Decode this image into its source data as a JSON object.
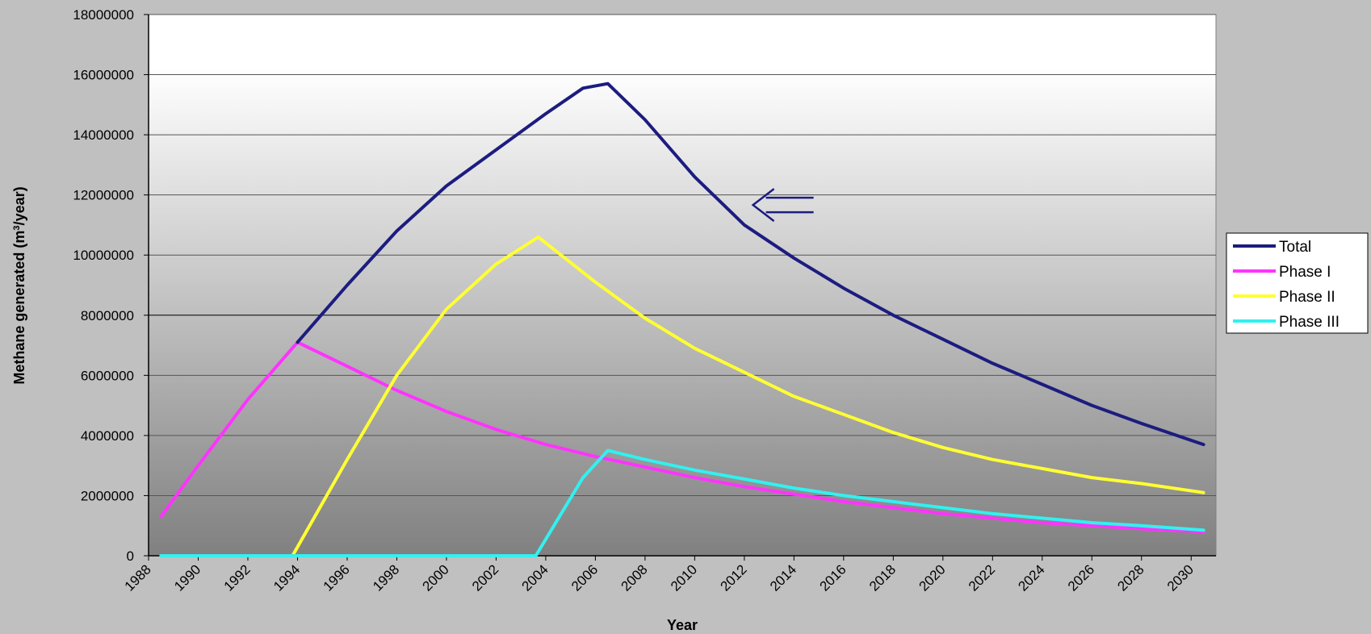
{
  "chart_data": {
    "type": "line",
    "title": "",
    "xlabel": "Year",
    "ylabel": "Methane generated (m³/year)",
    "ylabel_parts": {
      "before": "Methane generated (m",
      "sup": "3",
      "after": "/year)"
    },
    "xlim": [
      1988,
      2031
    ],
    "ylim": [
      0,
      18000000
    ],
    "y_ticks": [
      "0",
      "2000000",
      "4000000",
      "6000000",
      "8000000",
      "10000000",
      "12000000",
      "14000000",
      "16000000",
      "18000000"
    ],
    "x_ticks": [
      "1988",
      "1990",
      "1992",
      "1994",
      "1996",
      "1998",
      "2000",
      "2002",
      "2004",
      "2006",
      "2008",
      "2010",
      "2012",
      "2014",
      "2016",
      "2018",
      "2020",
      "2022",
      "2024",
      "2026",
      "2028",
      "2030"
    ],
    "grid": true,
    "legend_position": "right",
    "annotation": {
      "type": "double-arrow-left",
      "x": 2013,
      "y": 11800000,
      "color": "#1c1c80"
    },
    "series": [
      {
        "name": "Total",
        "color": "#1c1c80",
        "x": [
          1994,
          1996,
          1998,
          2000,
          2002,
          2004,
          2005.5,
          2006.5,
          2008,
          2010,
          2012,
          2014,
          2016,
          2018,
          2020,
          2022,
          2024,
          2026,
          2028,
          2030.5
        ],
        "y": [
          7100000,
          9000000,
          10800000,
          12300000,
          13500000,
          14700000,
          15550000,
          15700000,
          14500000,
          12600000,
          11000000,
          9900000,
          8900000,
          8000000,
          7200000,
          6400000,
          5700000,
          5000000,
          4400000,
          3700000
        ]
      },
      {
        "name": "Phase I",
        "color": "#ff33ff",
        "x": [
          1988.5,
          1990,
          1992,
          1994,
          1996,
          1998,
          2000,
          2002,
          2004,
          2006,
          2008,
          2010,
          2012,
          2014,
          2016,
          2018,
          2020,
          2022,
          2024,
          2026,
          2028,
          2030.5
        ],
        "y": [
          1300000,
          3000000,
          5200000,
          7100000,
          6300000,
          5500000,
          4800000,
          4200000,
          3700000,
          3300000,
          2950000,
          2600000,
          2300000,
          2050000,
          1800000,
          1600000,
          1400000,
          1250000,
          1100000,
          1000000,
          900000,
          800000
        ]
      },
      {
        "name": "Phase II",
        "color": "#ffff33",
        "x": [
          1993.8,
          1996,
          1998,
          2000,
          2002,
          2003.7,
          2006,
          2008,
          2010,
          2012,
          2014,
          2016,
          2018,
          2020,
          2022,
          2024,
          2026,
          2028,
          2030.5
        ],
        "y": [
          0,
          3200000,
          6000000,
          8200000,
          9700000,
          10600000,
          9100000,
          7900000,
          6900000,
          6100000,
          5300000,
          4700000,
          4100000,
          3600000,
          3200000,
          2900000,
          2600000,
          2400000,
          2100000
        ],
        "prefix_y": 0
      },
      {
        "name": "Phase III",
        "color": "#33f0f0",
        "x": [
          1988.5,
          2003.6,
          2005.5,
          2006.5,
          2008,
          2010,
          2012,
          2014,
          2016,
          2018,
          2020,
          2022,
          2024,
          2026,
          2028,
          2030.5
        ],
        "y": [
          0,
          0,
          2600000,
          3500000,
          3200000,
          2850000,
          2550000,
          2250000,
          2000000,
          1800000,
          1600000,
          1400000,
          1250000,
          1100000,
          1000000,
          850000
        ]
      }
    ]
  }
}
